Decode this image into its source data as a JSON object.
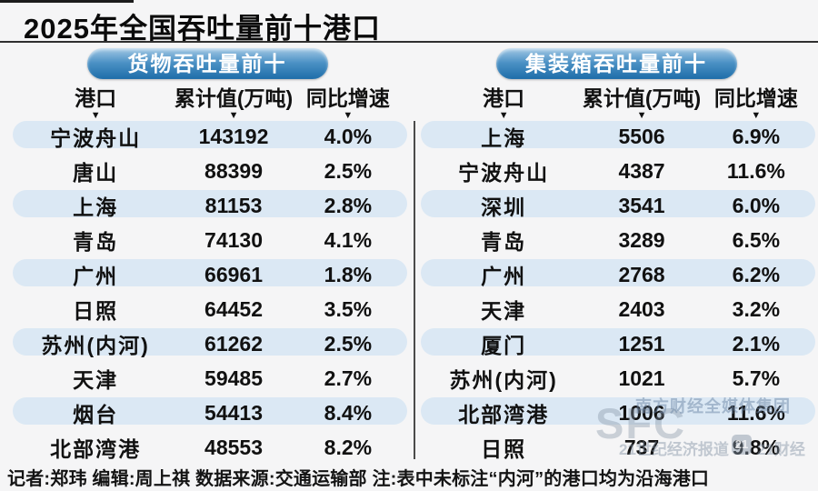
{
  "title": "2025年全国吞吐量前十港口",
  "tables": [
    {
      "badge": "货物吞吐量前十",
      "columns": [
        "港口",
        "累计值(万吨)",
        "同比增速"
      ],
      "rows": [
        {
          "port": "宁波舟山",
          "value": "143192",
          "growth": "4.0%"
        },
        {
          "port": "唐山",
          "value": "88399",
          "growth": "2.5%"
        },
        {
          "port": "上海",
          "value": "81153",
          "growth": "2.8%"
        },
        {
          "port": "青岛",
          "value": "74130",
          "growth": "4.1%"
        },
        {
          "port": "广州",
          "value": "66961",
          "growth": "1.8%"
        },
        {
          "port": "日照",
          "value": "64452",
          "growth": "3.5%"
        },
        {
          "port": "苏州(内河)",
          "value": "61262",
          "growth": "2.5%"
        },
        {
          "port": "天津",
          "value": "59485",
          "growth": "2.7%"
        },
        {
          "port": "烟台",
          "value": "54413",
          "growth": "8.4%"
        },
        {
          "port": "北部湾港",
          "value": "48553",
          "growth": "8.2%"
        }
      ]
    },
    {
      "badge": "集装箱吞吐量前十",
      "columns": [
        "港口",
        "累计值(万吨)",
        "同比增速"
      ],
      "rows": [
        {
          "port": "上海",
          "value": "5506",
          "growth": "6.9%"
        },
        {
          "port": "宁波舟山",
          "value": "4387",
          "growth": "11.6%"
        },
        {
          "port": "深圳",
          "value": "3541",
          "growth": "6.0%"
        },
        {
          "port": "青岛",
          "value": "3289",
          "growth": "6.5%"
        },
        {
          "port": "广州",
          "value": "2768",
          "growth": "6.2%"
        },
        {
          "port": "天津",
          "value": "2403",
          "growth": "3.2%"
        },
        {
          "port": "厦门",
          "value": "1251",
          "growth": "2.1%"
        },
        {
          "port": "苏州(内河)",
          "value": "1021",
          "growth": "5.7%"
        },
        {
          "port": "北部湾港",
          "value": "1006",
          "growth": "11.6%"
        },
        {
          "port": "日照",
          "value": "737",
          "growth": "9.8%"
        }
      ]
    }
  ],
  "chart_data": [
    {
      "type": "table",
      "title": "货物吞吐量前十",
      "columns": [
        "港口",
        "累计值(万吨)",
        "同比增速"
      ],
      "categories": [
        "宁波舟山",
        "唐山",
        "上海",
        "青岛",
        "广州",
        "日照",
        "苏州(内河)",
        "天津",
        "烟台",
        "北部湾港"
      ],
      "series": [
        {
          "name": "累计值(万吨)",
          "values": [
            143192,
            88399,
            81153,
            74130,
            66961,
            64452,
            61262,
            59485,
            54413,
            48553
          ]
        },
        {
          "name": "同比增速(%)",
          "values": [
            4.0,
            2.5,
            2.8,
            4.1,
            1.8,
            3.5,
            2.5,
            2.7,
            8.4,
            8.2
          ]
        }
      ]
    },
    {
      "type": "table",
      "title": "集装箱吞吐量前十",
      "columns": [
        "港口",
        "累计值(万吨)",
        "同比增速"
      ],
      "categories": [
        "上海",
        "宁波舟山",
        "深圳",
        "青岛",
        "广州",
        "天津",
        "厦门",
        "苏州(内河)",
        "北部湾港",
        "日照"
      ],
      "series": [
        {
          "name": "累计值(万吨)",
          "values": [
            5506,
            4387,
            3541,
            3289,
            2768,
            2403,
            1251,
            1021,
            1006,
            737
          ]
        },
        {
          "name": "同比增速(%)",
          "values": [
            6.9,
            11.6,
            6.0,
            6.5,
            6.2,
            3.2,
            2.1,
            5.7,
            11.6,
            9.8
          ]
        }
      ]
    }
  ],
  "pointer_icon": "▼",
  "footer": "记者:郑玮  编辑:周上祺  数据来源:交通运输部  注:表中未标注“内河”的港口均为沿海港口",
  "watermark": {
    "brand": "SFC",
    "org": "南方财经全媒体集团",
    "paper": "21世纪经济报道",
    "badge": "21",
    "app": "21财经"
  },
  "colors": {
    "background": "#f5f5f6",
    "row_shaded": "#dbe8f4",
    "badge_blue_top": "#a2c8e5",
    "badge_blue_bottom": "#1e6da9",
    "text": "#111111"
  }
}
